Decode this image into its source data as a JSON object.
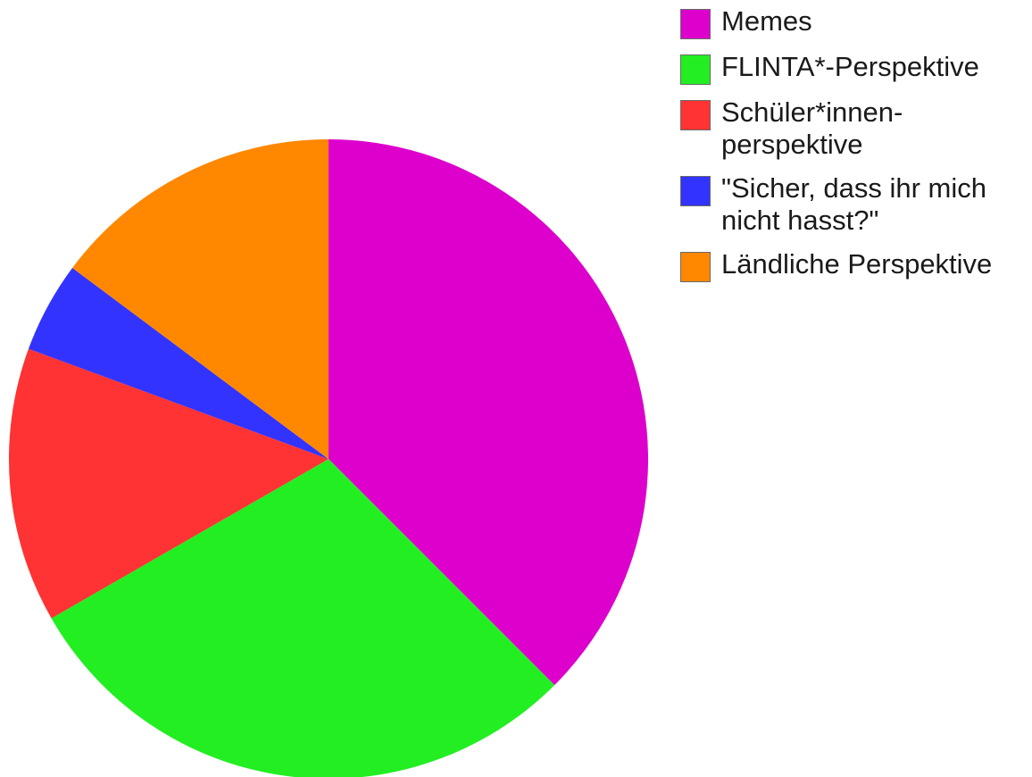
{
  "chart_data": {
    "type": "pie",
    "start_angle": "12 o'clock",
    "direction": "clockwise",
    "legend_position": "top-right",
    "slices": [
      {
        "label": "Memes",
        "value": 37.5,
        "color": "#dd00cc"
      },
      {
        "label": "FLINTA*-Perspektive",
        "value": 29.2,
        "color": "#22ee22"
      },
      {
        "label": "Schüler*innen-\nperspektive",
        "value": 13.9,
        "color": "#ff3333"
      },
      {
        "label": "\"Sicher, dass ihr mich\nnicht hasst?\"",
        "value": 4.6,
        "color": "#3333ff"
      },
      {
        "label": "Ländliche Perspektive",
        "value": 14.8,
        "color": "#ff8800"
      }
    ]
  }
}
